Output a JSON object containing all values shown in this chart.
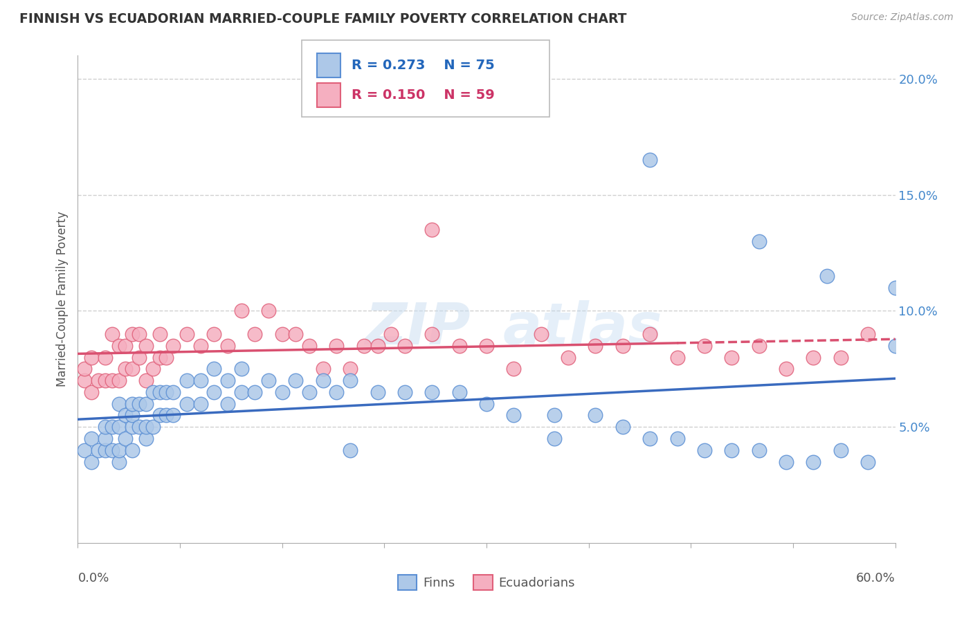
{
  "title": "FINNISH VS ECUADORIAN MARRIED-COUPLE FAMILY POVERTY CORRELATION CHART",
  "source": "Source: ZipAtlas.com",
  "ylabel": "Married-Couple Family Poverty",
  "xmin": 0.0,
  "xmax": 0.6,
  "ymin": 0.0,
  "ymax": 0.21,
  "yticks": [
    0.05,
    0.1,
    0.15,
    0.2
  ],
  "ytick_labels": [
    "5.0%",
    "10.0%",
    "15.0%",
    "20.0%"
  ],
  "legend_r_finns": "R = 0.273",
  "legend_n_finns": "N = 75",
  "legend_r_ecu": "R = 0.150",
  "legend_n_ecu": "N = 59",
  "finns_color": "#adc8e8",
  "ecu_color": "#f5afc0",
  "finns_edge_color": "#5b8fd4",
  "ecu_edge_color": "#e0607a",
  "finns_line_color": "#3a6bbf",
  "ecu_line_color": "#d95070",
  "background_color": "#ffffff",
  "grid_color": "#d0d0d0",
  "finns_x": [
    0.005,
    0.01,
    0.01,
    0.015,
    0.02,
    0.02,
    0.02,
    0.025,
    0.025,
    0.03,
    0.03,
    0.03,
    0.03,
    0.035,
    0.035,
    0.04,
    0.04,
    0.04,
    0.04,
    0.045,
    0.045,
    0.05,
    0.05,
    0.05,
    0.055,
    0.055,
    0.06,
    0.06,
    0.065,
    0.065,
    0.07,
    0.07,
    0.08,
    0.08,
    0.09,
    0.09,
    0.1,
    0.1,
    0.11,
    0.11,
    0.12,
    0.12,
    0.13,
    0.14,
    0.15,
    0.16,
    0.17,
    0.18,
    0.19,
    0.2,
    0.22,
    0.24,
    0.26,
    0.28,
    0.3,
    0.32,
    0.35,
    0.38,
    0.4,
    0.42,
    0.44,
    0.46,
    0.48,
    0.5,
    0.52,
    0.54,
    0.56,
    0.58,
    0.6,
    0.42,
    0.5,
    0.55,
    0.6,
    0.35,
    0.2
  ],
  "finns_y": [
    0.04,
    0.035,
    0.045,
    0.04,
    0.04,
    0.045,
    0.05,
    0.04,
    0.05,
    0.035,
    0.04,
    0.05,
    0.06,
    0.045,
    0.055,
    0.04,
    0.05,
    0.055,
    0.06,
    0.05,
    0.06,
    0.045,
    0.05,
    0.06,
    0.05,
    0.065,
    0.055,
    0.065,
    0.055,
    0.065,
    0.055,
    0.065,
    0.06,
    0.07,
    0.06,
    0.07,
    0.065,
    0.075,
    0.06,
    0.07,
    0.065,
    0.075,
    0.065,
    0.07,
    0.065,
    0.07,
    0.065,
    0.07,
    0.065,
    0.07,
    0.065,
    0.065,
    0.065,
    0.065,
    0.06,
    0.055,
    0.055,
    0.055,
    0.05,
    0.045,
    0.045,
    0.04,
    0.04,
    0.04,
    0.035,
    0.035,
    0.04,
    0.035,
    0.085,
    0.165,
    0.13,
    0.115,
    0.11,
    0.045,
    0.04
  ],
  "ecu_x": [
    0.005,
    0.005,
    0.01,
    0.01,
    0.015,
    0.02,
    0.02,
    0.025,
    0.025,
    0.03,
    0.03,
    0.035,
    0.035,
    0.04,
    0.04,
    0.045,
    0.045,
    0.05,
    0.05,
    0.055,
    0.06,
    0.06,
    0.065,
    0.07,
    0.08,
    0.09,
    0.1,
    0.11,
    0.12,
    0.13,
    0.14,
    0.15,
    0.16,
    0.17,
    0.18,
    0.19,
    0.2,
    0.21,
    0.22,
    0.23,
    0.24,
    0.26,
    0.28,
    0.3,
    0.32,
    0.34,
    0.36,
    0.38,
    0.4,
    0.42,
    0.44,
    0.46,
    0.48,
    0.5,
    0.52,
    0.54,
    0.56,
    0.58,
    0.26
  ],
  "ecu_y": [
    0.07,
    0.075,
    0.065,
    0.08,
    0.07,
    0.07,
    0.08,
    0.07,
    0.09,
    0.07,
    0.085,
    0.075,
    0.085,
    0.075,
    0.09,
    0.08,
    0.09,
    0.07,
    0.085,
    0.075,
    0.08,
    0.09,
    0.08,
    0.085,
    0.09,
    0.085,
    0.09,
    0.085,
    0.1,
    0.09,
    0.1,
    0.09,
    0.09,
    0.085,
    0.075,
    0.085,
    0.075,
    0.085,
    0.085,
    0.09,
    0.085,
    0.09,
    0.085,
    0.085,
    0.075,
    0.09,
    0.08,
    0.085,
    0.085,
    0.09,
    0.08,
    0.085,
    0.08,
    0.085,
    0.075,
    0.08,
    0.08,
    0.09,
    0.135
  ]
}
